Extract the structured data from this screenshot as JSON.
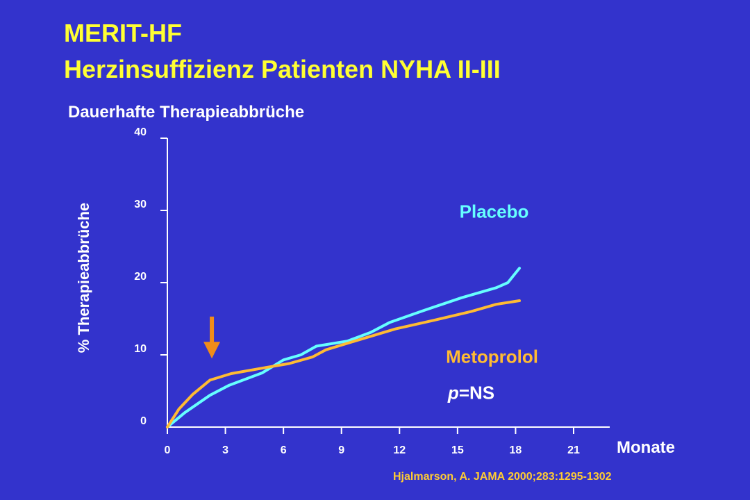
{
  "title_line1": "MERIT-HF",
  "title_line2": "Herzinsuffizienz Patienten NYHA II-III",
  "subtitle": "Dauerhafte Therapieabbrüche",
  "citation": "Hjalmarson, A. JAMA 2000;283:1295-1302",
  "colors": {
    "background": "#3333cc",
    "title": "#ffff33",
    "placebo": "#66ffff",
    "metoprolol": "#ffbb33",
    "arrow": "#f08c1a",
    "axis": "#ffffff"
  },
  "chart_data": {
    "type": "line",
    "ylabel": "% Therapieabbrüche",
    "xlabel": "Monate",
    "xlim": [
      0,
      21
    ],
    "ylim": [
      0,
      40
    ],
    "x_ticks": [
      0,
      3,
      6,
      9,
      12,
      15,
      18,
      21
    ],
    "y_ticks": [
      0,
      10,
      20,
      30,
      40
    ],
    "annotation": "p=NS",
    "arrow_marker": {
      "x": 2.3,
      "y_top": 15.3,
      "y_bottom": 9.5,
      "direction": "down"
    },
    "series": [
      {
        "name": "Placebo",
        "color": "#66ffff",
        "points": [
          [
            0,
            0
          ],
          [
            0.9,
            2.0
          ],
          [
            2.2,
            4.4
          ],
          [
            3.2,
            5.8
          ],
          [
            4.9,
            7.5
          ],
          [
            6.0,
            9.3
          ],
          [
            6.9,
            10.0
          ],
          [
            7.7,
            11.2
          ],
          [
            9.3,
            11.9
          ],
          [
            10.5,
            13.1
          ],
          [
            11.5,
            14.5
          ],
          [
            13.2,
            16.1
          ],
          [
            15.2,
            17.9
          ],
          [
            17.0,
            19.3
          ],
          [
            17.6,
            20.0
          ],
          [
            17.9,
            21.0
          ],
          [
            18.2,
            22.0
          ]
        ]
      },
      {
        "name": "Metoprolol",
        "color": "#ffbb33",
        "points": [
          [
            0,
            0
          ],
          [
            0.6,
            2.5
          ],
          [
            1.3,
            4.5
          ],
          [
            2.2,
            6.5
          ],
          [
            3.3,
            7.4
          ],
          [
            5.2,
            8.3
          ],
          [
            6.3,
            8.8
          ],
          [
            7.5,
            9.7
          ],
          [
            8.2,
            10.7
          ],
          [
            9.8,
            12.0
          ],
          [
            11.8,
            13.6
          ],
          [
            13.8,
            14.8
          ],
          [
            15.7,
            16.0
          ],
          [
            17.0,
            17.0
          ],
          [
            18.2,
            17.5
          ]
        ]
      }
    ],
    "series_labels": [
      {
        "series": "Placebo",
        "text": "Placebo",
        "x": 15.1,
        "y": 29.0
      },
      {
        "series": "Metoprolol",
        "text": "Metoprolol",
        "x": 14.4,
        "y": 8.9
      }
    ],
    "annotation_position": {
      "x": 14.5,
      "y": 3.9
    }
  }
}
